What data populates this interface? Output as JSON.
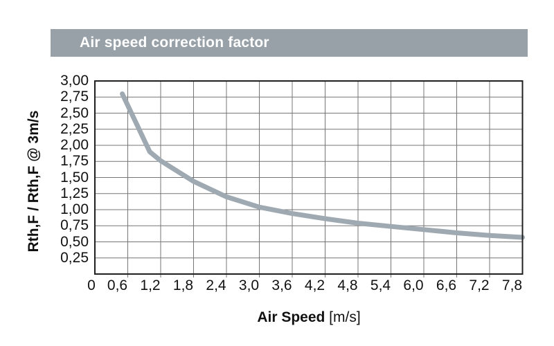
{
  "header": {
    "title": "Air speed correction factor"
  },
  "chart_data": {
    "type": "line",
    "title": "Air speed correction factor",
    "xlabel_bold": "Air Speed",
    "xlabel_unit": " [m/s]",
    "ylabel": "Rth,F / Rth,F @ 3m/s",
    "xlim": [
      0,
      7.8
    ],
    "ylim": [
      0,
      3
    ],
    "x_tick_step": 0.6,
    "y_tick_step": 0.25,
    "x_ticks": [
      "0",
      "0,6",
      "1,2",
      "1,8",
      "2,4",
      "3,0",
      "3,6",
      "4,2",
      "4,8",
      "5,4",
      "6,0",
      "6,6",
      "7,2",
      "7,8"
    ],
    "y_ticks": [
      "0,25",
      "0,50",
      "0,75",
      "1,00",
      "1,25",
      "1,50",
      "1,75",
      "2,00",
      "2,25",
      "2,50",
      "2,75",
      "3,00"
    ],
    "grid": true,
    "legend_position": "none",
    "series": [
      {
        "name": "air-speed-correction-factor",
        "x": [
          0.5,
          0.6,
          1.0,
          1.2,
          1.8,
          2.4,
          3.0,
          3.6,
          4.2,
          4.8,
          5.4,
          6.0,
          6.6,
          7.2,
          7.8
        ],
        "y": [
          2.8,
          2.62,
          1.9,
          1.76,
          1.44,
          1.2,
          1.04,
          0.94,
          0.86,
          0.79,
          0.74,
          0.69,
          0.64,
          0.6,
          0.57
        ]
      }
    ],
    "colors": {
      "curve": "#9fa9b2",
      "header_bar": "#98a1a8",
      "grid": "#757575",
      "border": "#1f1f1f",
      "text": "#111111",
      "background": "#ffffff"
    }
  }
}
